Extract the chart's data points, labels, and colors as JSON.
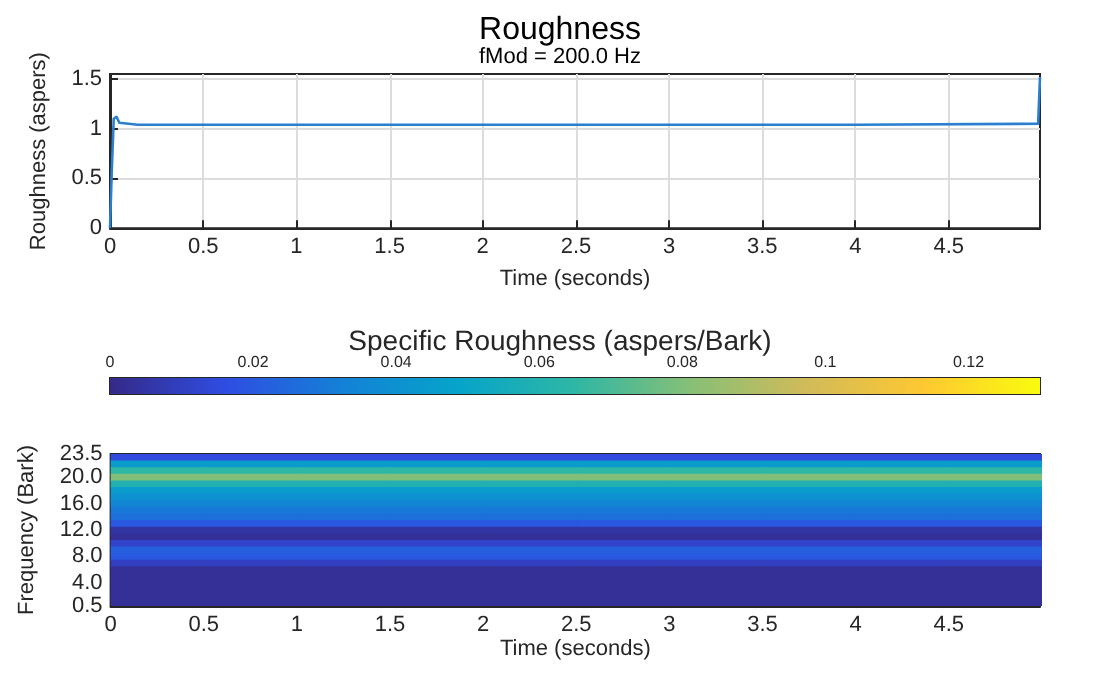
{
  "chart_data": [
    {
      "type": "line",
      "title": "Roughness",
      "subtitle": "fMod = 200.0 Hz",
      "xlabel": "Time (seconds)",
      "ylabel": "Roughness (aspers)",
      "x": [
        0,
        0.01,
        0.02,
        0.035,
        0.05,
        0.1,
        0.15,
        1,
        2,
        3,
        4,
        4.98,
        4.99
      ],
      "series": [
        {
          "color": "#2a7fcf",
          "values": [
            0,
            0.6,
            1.1,
            1.12,
            1.06,
            1.05,
            1.04,
            1.04,
            1.04,
            1.04,
            1.04,
            1.05,
            1.52
          ]
        }
      ],
      "xlim": [
        0,
        4.99
      ],
      "xticks": [
        0,
        0.5,
        1,
        1.5,
        2,
        2.5,
        3,
        3.5,
        4,
        4.5
      ],
      "ylim": [
        0,
        1.55
      ],
      "yticks": [
        0,
        0.5,
        1,
        1.5
      ],
      "grid": true,
      "marker": "none",
      "line_style": "solid"
    },
    {
      "type": "heatmap",
      "clabel": "Specific Roughness (aspers/Bark)",
      "xlabel": "Time (seconds)",
      "ylabel": "Frequency (Bark)",
      "x": [
        0.25,
        0.75,
        1.25,
        1.75,
        2.25,
        2.75,
        3.25,
        3.75,
        4.25,
        4.75
      ],
      "y": [
        23,
        22,
        21,
        20,
        19,
        18,
        17,
        16,
        15,
        14,
        13,
        12,
        11,
        10,
        9,
        8,
        7,
        6,
        5,
        4,
        3,
        2,
        1
      ],
      "cells": [
        [
          0.015,
          0.015,
          0.015,
          0.015,
          0.015,
          0.015,
          0.015,
          0.015,
          0.015,
          0.015
        ],
        [
          0.045,
          0.045,
          0.045,
          0.045,
          0.045,
          0.045,
          0.045,
          0.045,
          0.045,
          0.045
        ],
        [
          0.065,
          0.065,
          0.065,
          0.065,
          0.065,
          0.065,
          0.065,
          0.065,
          0.065,
          0.065
        ],
        [
          0.08,
          0.08,
          0.08,
          0.08,
          0.08,
          0.08,
          0.08,
          0.08,
          0.08,
          0.08
        ],
        [
          0.06,
          0.06,
          0.06,
          0.06,
          0.06,
          0.06,
          0.06,
          0.06,
          0.06,
          0.06
        ],
        [
          0.045,
          0.045,
          0.045,
          0.045,
          0.045,
          0.045,
          0.045,
          0.045,
          0.045,
          0.045
        ],
        [
          0.04,
          0.04,
          0.04,
          0.04,
          0.04,
          0.04,
          0.04,
          0.04,
          0.04,
          0.04
        ],
        [
          0.035,
          0.035,
          0.035,
          0.035,
          0.035,
          0.035,
          0.035,
          0.035,
          0.035,
          0.035
        ],
        [
          0.03,
          0.03,
          0.03,
          0.03,
          0.03,
          0.03,
          0.03,
          0.03,
          0.03,
          0.03
        ],
        [
          0.027,
          0.027,
          0.027,
          0.027,
          0.027,
          0.027,
          0.027,
          0.027,
          0.027,
          0.027
        ],
        [
          0.02,
          0.02,
          0.02,
          0.02,
          0.02,
          0.02,
          0.02,
          0.02,
          0.02,
          0.02
        ],
        [
          0.005,
          0.005,
          0.005,
          0.005,
          0.005,
          0.005,
          0.005,
          0.005,
          0.005,
          0.005
        ],
        [
          0.003,
          0.003,
          0.003,
          0.003,
          0.003,
          0.003,
          0.003,
          0.003,
          0.003,
          0.003
        ],
        [
          0.012,
          0.012,
          0.012,
          0.012,
          0.012,
          0.012,
          0.012,
          0.012,
          0.012,
          0.012
        ],
        [
          0.022,
          0.022,
          0.022,
          0.022,
          0.022,
          0.022,
          0.022,
          0.022,
          0.022,
          0.022
        ],
        [
          0.02,
          0.02,
          0.02,
          0.02,
          0.02,
          0.02,
          0.02,
          0.02,
          0.02,
          0.02
        ],
        [
          0.01,
          0.01,
          0.01,
          0.01,
          0.01,
          0.01,
          0.01,
          0.01,
          0.01,
          0.01
        ],
        [
          0.003,
          0.003,
          0.003,
          0.003,
          0.003,
          0.003,
          0.003,
          0.003,
          0.003,
          0.003
        ],
        [
          0.003,
          0.003,
          0.003,
          0.003,
          0.003,
          0.003,
          0.003,
          0.003,
          0.003,
          0.003
        ],
        [
          0.003,
          0.003,
          0.003,
          0.003,
          0.003,
          0.003,
          0.003,
          0.003,
          0.003,
          0.003
        ],
        [
          0.003,
          0.003,
          0.003,
          0.003,
          0.003,
          0.003,
          0.003,
          0.003,
          0.003,
          0.003
        ],
        [
          0.003,
          0.003,
          0.003,
          0.003,
          0.003,
          0.003,
          0.003,
          0.003,
          0.003,
          0.003
        ],
        [
          0.003,
          0.003,
          0.003,
          0.003,
          0.003,
          0.003,
          0.003,
          0.003,
          0.003,
          0.003
        ]
      ],
      "xlim": [
        0,
        4.99
      ],
      "xticks": [
        0,
        0.5,
        1,
        1.5,
        2,
        2.5,
        3,
        3.5,
        4,
        4.5
      ],
      "ylim": [
        0.5,
        23.5
      ],
      "yticks": [
        0.5,
        {
          "value": 4,
          "label": "4.0"
        },
        {
          "value": 8,
          "label": "8.0"
        },
        {
          "value": 12,
          "label": "12.0"
        },
        {
          "value": 16,
          "label": "16.0"
        },
        {
          "value": 20,
          "label": "20.0"
        },
        23.5
      ],
      "clim": [
        0,
        0.13
      ],
      "cticks": [
        0,
        0.02,
        0.04,
        0.06,
        0.08,
        0.1,
        0.12
      ]
    }
  ]
}
